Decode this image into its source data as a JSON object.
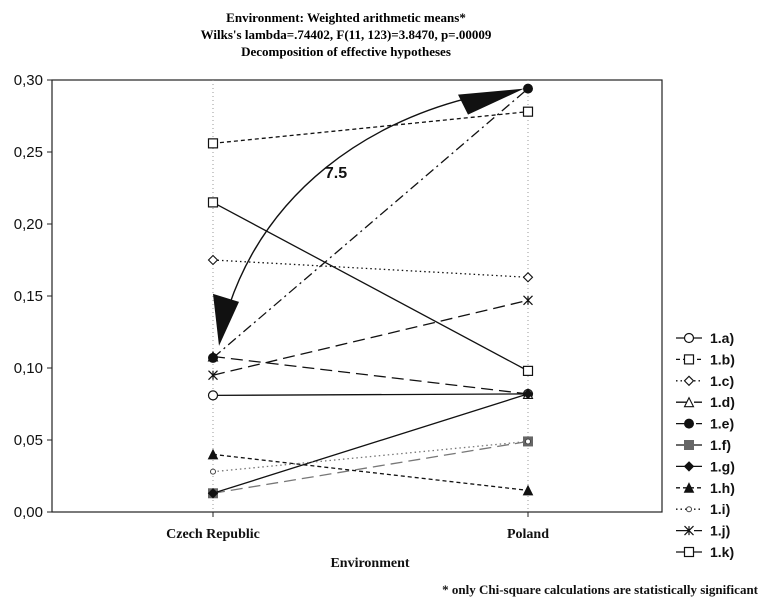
{
  "chart_data": {
    "type": "line",
    "title_lines": [
      "Environment: Weighted arithmetic means*",
      "Wilks's lambda=.74402, F(11, 123)=3.8470, p=.00009",
      "Decomposition of effective hypotheses"
    ],
    "xlabel": "Environment",
    "ylabel": "",
    "categories": [
      "Czech Republic",
      "Poland"
    ],
    "ylim": [
      0,
      0.3
    ],
    "yticks": [
      "0,00",
      "0,05",
      "0,10",
      "0,15",
      "0,20",
      "0,25",
      "0,30"
    ],
    "grid": "vertical-dotted",
    "legend_position": "right",
    "series": [
      {
        "name": "1.a)",
        "values": [
          0.081,
          0.082
        ],
        "marker": "circle-open",
        "dash": "solid"
      },
      {
        "name": "1.b)",
        "values": [
          0.256,
          0.278
        ],
        "marker": "square-open",
        "dash": "short-dash"
      },
      {
        "name": "1.c)",
        "values": [
          0.175,
          0.163
        ],
        "marker": "diamond-open",
        "dash": "dotted"
      },
      {
        "name": "1.d)",
        "values": [
          0.108,
          0.082
        ],
        "marker": "triangle-open",
        "dash": "long-dash"
      },
      {
        "name": "1.e)",
        "values": [
          0.107,
          0.294
        ],
        "marker": "circle-filled",
        "dash": "dash-dot"
      },
      {
        "name": "1.f)",
        "values": [
          0.013,
          0.049
        ],
        "marker": "square-filled",
        "dash": "long-dash"
      },
      {
        "name": "1.g)",
        "values": [
          0.013,
          0.082
        ],
        "marker": "diamond-filled",
        "dash": "solid"
      },
      {
        "name": "1.h)",
        "values": [
          0.04,
          0.015
        ],
        "marker": "triangle-filled",
        "dash": "short-dash"
      },
      {
        "name": "1.i)",
        "values": [
          0.028,
          0.049
        ],
        "marker": "circle-small",
        "dash": "dotted"
      },
      {
        "name": "1.j)",
        "values": [
          0.095,
          0.147
        ],
        "marker": "star-open",
        "dash": "long-dash"
      },
      {
        "name": "1.k)",
        "values": [
          0.215,
          0.098
        ],
        "marker": "square-open",
        "dash": "solid"
      }
    ],
    "annotation": {
      "text": "7.5",
      "between": [
        "Czech Republic",
        "Poland"
      ],
      "values": [
        0.107,
        0.294
      ]
    },
    "footnote": "* only Chi-square calculations are statistically significant"
  }
}
